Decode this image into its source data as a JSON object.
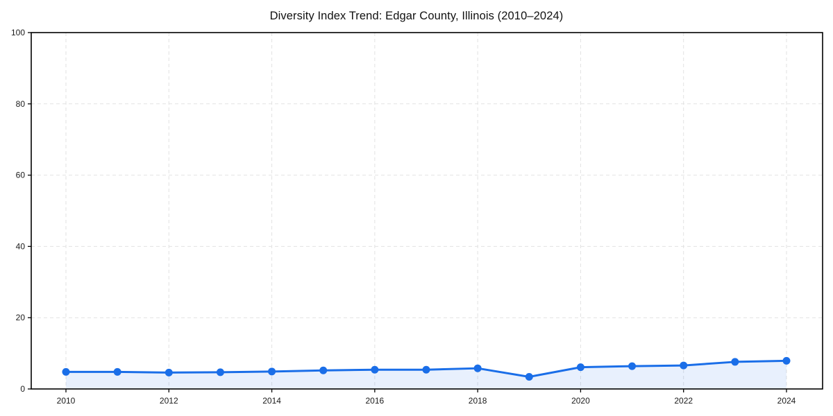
{
  "title": "Diversity Index Trend: Edgar County, Illinois (2010–2024)",
  "chart_data": {
    "type": "line",
    "title": "Diversity Index Trend: Edgar County, Illinois (2010–2024)",
    "x": [
      2010,
      2011,
      2012,
      2013,
      2014,
      2015,
      2016,
      2017,
      2018,
      2019,
      2020,
      2021,
      2022,
      2023,
      2024
    ],
    "values": [
      4.8,
      4.8,
      4.6,
      4.7,
      4.9,
      5.2,
      5.4,
      5.4,
      5.8,
      3.4,
      6.1,
      6.4,
      6.6,
      7.6,
      7.9
    ],
    "xlabel": "",
    "ylabel": "",
    "xlim": [
      2010,
      2024
    ],
    "ylim": [
      0,
      100
    ],
    "x_ticks": [
      2010,
      2012,
      2014,
      2016,
      2018,
      2020,
      2022,
      2024
    ],
    "y_ticks": [
      0,
      20,
      40,
      60,
      80,
      100
    ],
    "grid": true,
    "legend": false,
    "style": {
      "line_color": "#1a6ee8",
      "marker_color": "#1a6ee8",
      "fill_color": "#1a6ee8",
      "fill_opacity": 0.1,
      "grid_color": "#e2e2e2",
      "spine_color": "#000000",
      "background_color": "#ffffff"
    }
  }
}
